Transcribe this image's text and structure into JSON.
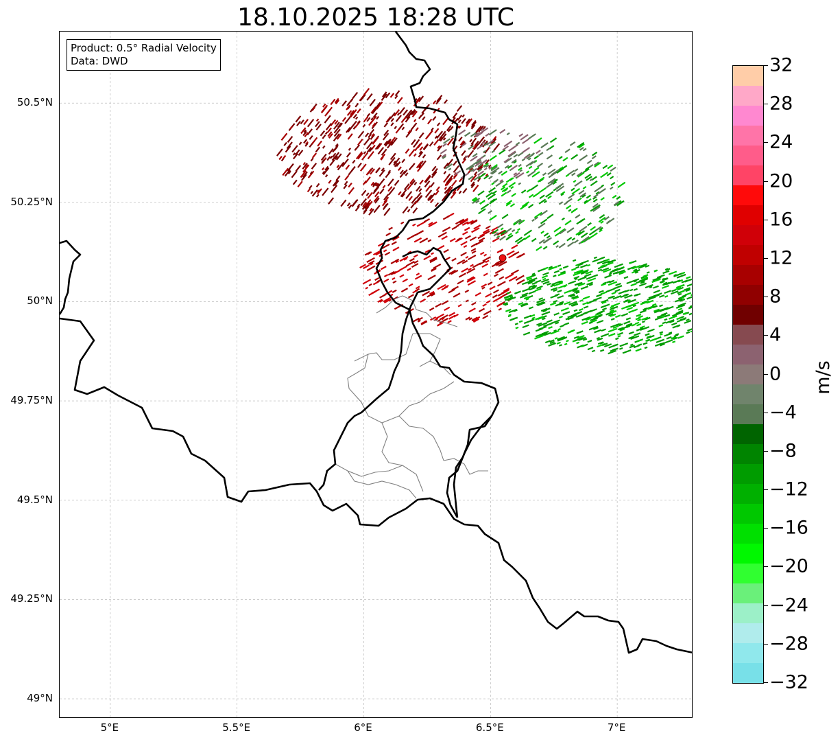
{
  "title": "18.10.2025 18:28 UTC",
  "info_box": {
    "product": "Product: 0.5° Radial Velocity",
    "data": "Data: DWD"
  },
  "map": {
    "lon_range": [
      4.8,
      7.3
    ],
    "lat_range": [
      48.95,
      50.68
    ],
    "lat_ticks": [
      {
        "value": 50.5,
        "label": "50.5°N"
      },
      {
        "value": 50.25,
        "label": "50.25°N"
      },
      {
        "value": 50.0,
        "label": "50°N"
      },
      {
        "value": 49.75,
        "label": "49.75°N"
      },
      {
        "value": 49.5,
        "label": "49.5°N"
      },
      {
        "value": 49.25,
        "label": "49.25°N"
      },
      {
        "value": 49.0,
        "label": "49°N"
      }
    ],
    "lon_ticks": [
      {
        "value": 5.0,
        "label": "5°E"
      },
      {
        "value": 5.5,
        "label": "5.5°E"
      },
      {
        "value": 6.0,
        "label": "6°E"
      },
      {
        "value": 6.5,
        "label": "6.5°E"
      },
      {
        "value": 7.0,
        "label": "7°E"
      }
    ],
    "radar_site": {
      "lon": 6.548,
      "lat": 50.11
    },
    "border_color": "#000000",
    "district_color": "#808080",
    "site_color": "#ee1111"
  },
  "colorbar": {
    "label": "m/s",
    "min": -32,
    "max": 32,
    "ticks": [
      "32",
      "28",
      "24",
      "20",
      "16",
      "12",
      "8",
      "4",
      "0",
      "−4",
      "−8",
      "−12",
      "−16",
      "−20",
      "−24",
      "−28",
      "−32"
    ],
    "colors_top_to_bottom": [
      "#ffcda8",
      "#ffa8c8",
      "#ff88d0",
      "#ff74a8",
      "#ff5c8a",
      "#ff4466",
      "#ff0a0a",
      "#e00000",
      "#d00008",
      "#c00000",
      "#a80000",
      "#900000",
      "#700000",
      "#864a50",
      "#8c6270",
      "#8c7a78",
      "#70846c",
      "#5a7a56",
      "#006400",
      "#008400",
      "#009c00",
      "#00b000",
      "#00c800",
      "#00e000",
      "#00f800",
      "#30ff30",
      "#6af07a",
      "#9cf0c8",
      "#b0ecec",
      "#90e8ec",
      "#78e0e8"
    ]
  },
  "velocity_palette": {
    "away_dark": "#7a0000",
    "away_mid": "#a80000",
    "away_light": "#d00008",
    "toward_dark": "#5a7a56",
    "toward_mid": "#009c00",
    "toward_light": "#00c800"
  }
}
